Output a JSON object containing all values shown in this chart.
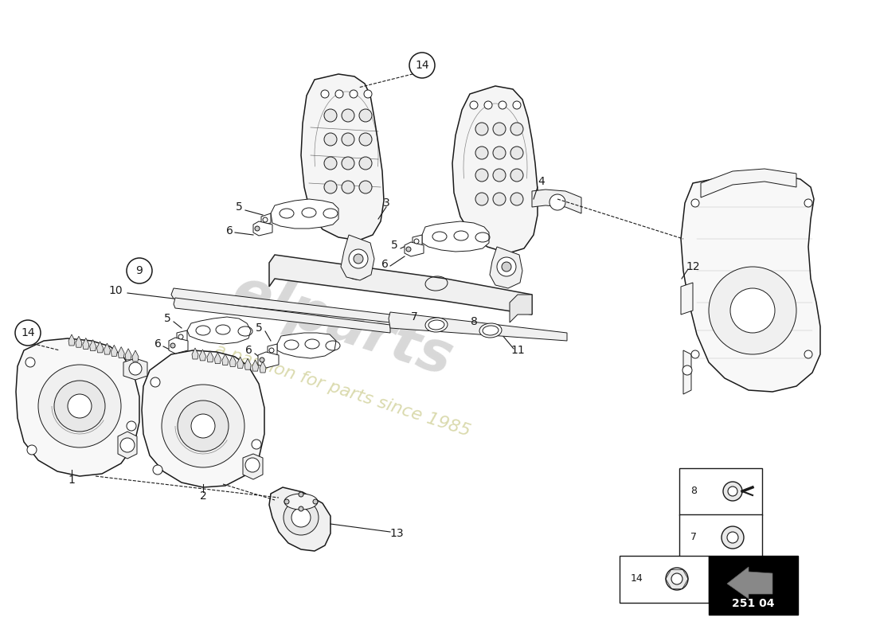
{
  "bg_color": "#ffffff",
  "line_color": "#1a1a1a",
  "watermark_color_text": "#d4d4a0",
  "watermark_color_logo": "#c8c8c8",
  "code_text": "251 04",
  "lw_main": 1.1,
  "lw_thin": 0.7,
  "lw_thick": 1.4
}
